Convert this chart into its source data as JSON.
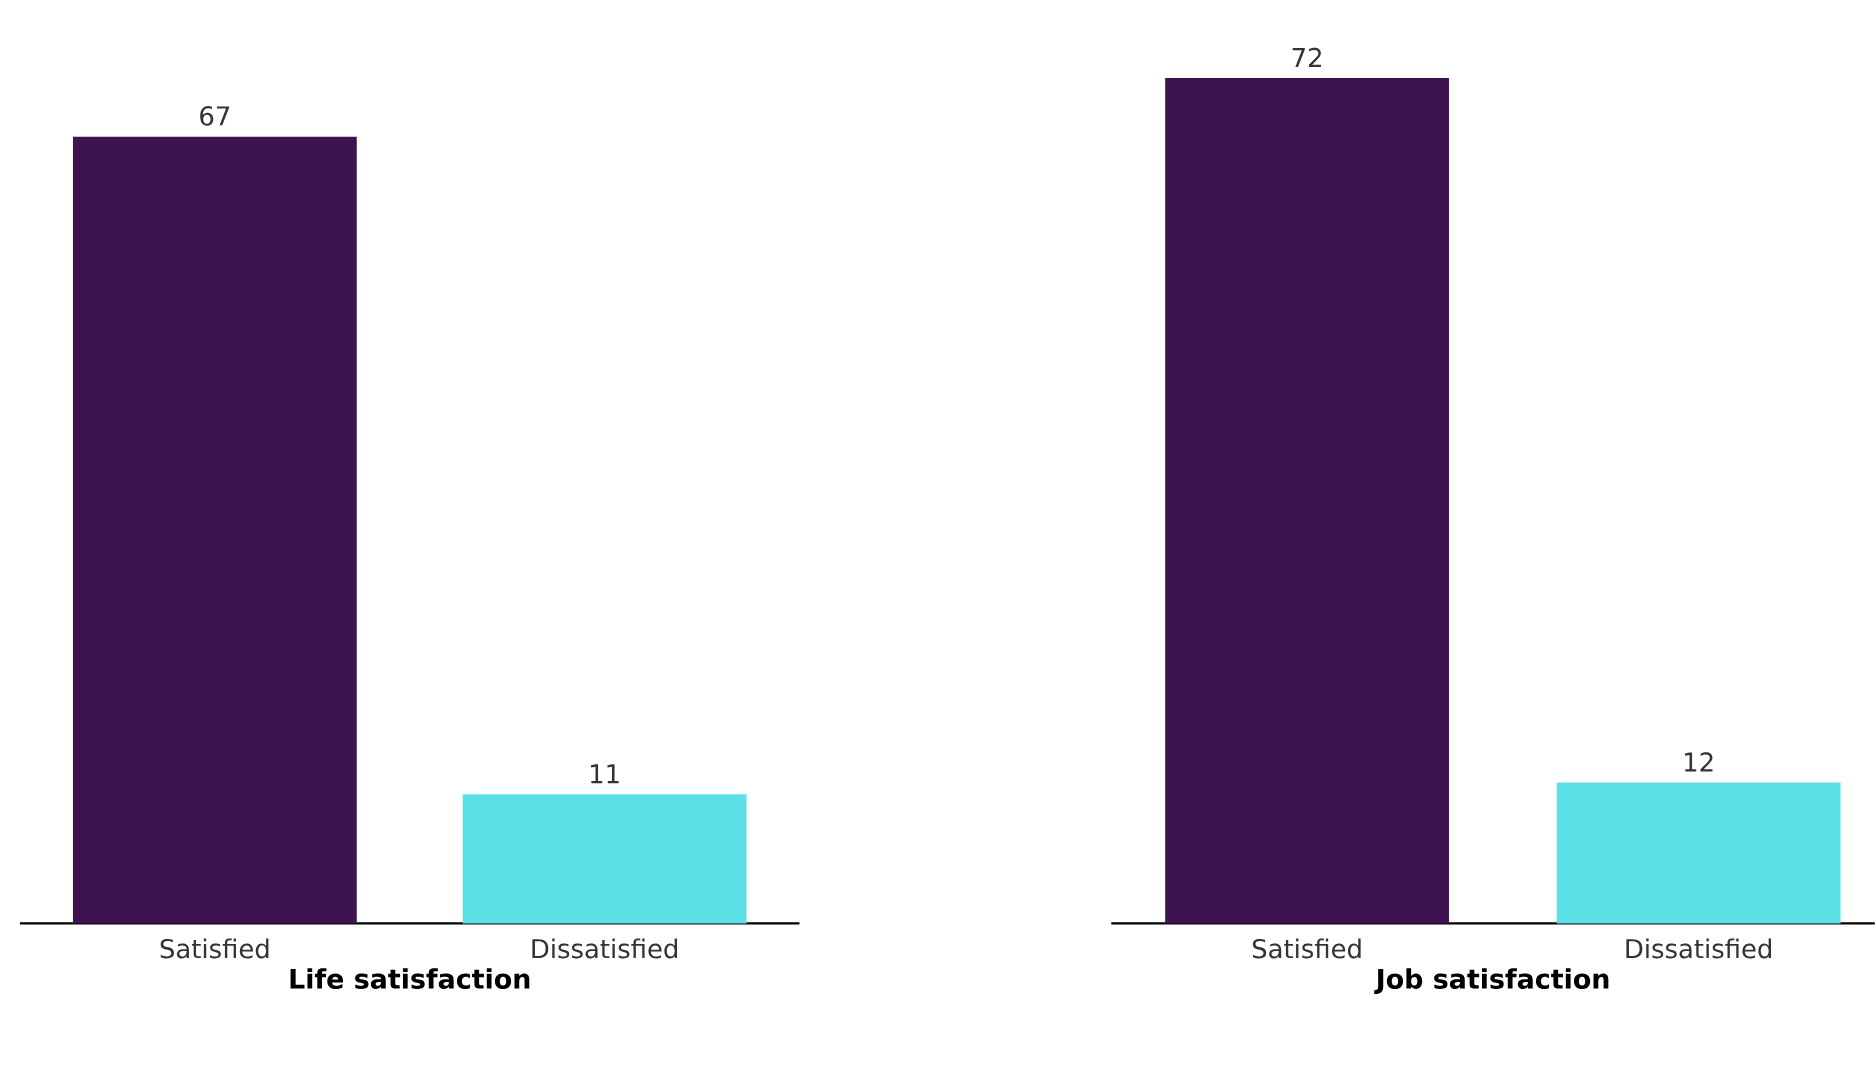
{
  "chart_data": [
    {
      "type": "bar",
      "xlabel": "Life satisfaction",
      "categories": [
        "Satisfied",
        "Dissatisfied"
      ],
      "values": [
        67,
        11
      ],
      "colors": [
        "#3d1350",
        "#5ce0e8"
      ],
      "data_labels": true
    },
    {
      "type": "bar",
      "xlabel": "Job satisfaction",
      "categories": [
        "Satisfied",
        "Dissatisfied"
      ],
      "values": [
        72,
        12
      ],
      "colors": [
        "#3d1350",
        "#5ce0e8"
      ],
      "data_labels": true
    }
  ]
}
